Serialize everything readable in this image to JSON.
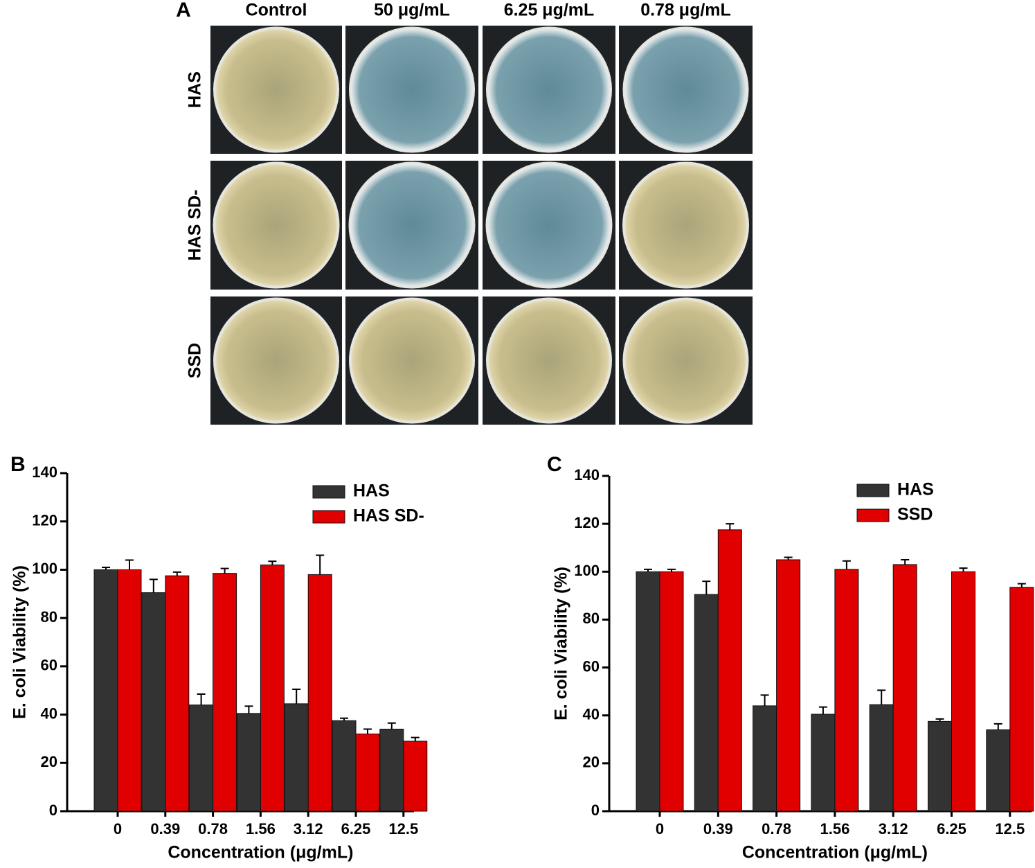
{
  "panel_a": {
    "label": "A",
    "columns": [
      "Control",
      "50 μg/mL",
      "6.25 μg/mL",
      "0.78 μg/mL"
    ],
    "rows": [
      "HAS",
      "HAS SD-",
      "SSD"
    ]
  },
  "chart_data": [
    {
      "type": "bar",
      "panel_label": "B",
      "xlabel": "Concentration (μg/mL)",
      "ylabel": "E. coli  Viability (%)",
      "categories": [
        "0",
        "0.39",
        "0.78",
        "1.56",
        "3.12",
        "6.25",
        "12.5"
      ],
      "series": [
        {
          "name": "HAS",
          "color": "#333333",
          "values": [
            100,
            90.5,
            44,
            40.5,
            44.5,
            37.5,
            34
          ],
          "errors": [
            1,
            5.5,
            4.5,
            3,
            6,
            1,
            2.5
          ]
        },
        {
          "name": "HAS SD-",
          "color": "#e00000",
          "values": [
            100,
            97.5,
            98.5,
            102,
            98,
            32,
            29
          ],
          "errors": [
            4,
            1.5,
            2,
            1.5,
            8,
            2,
            1.5
          ]
        }
      ],
      "ylim": [
        0,
        140
      ],
      "yticks": [
        0,
        20,
        40,
        60,
        80,
        100,
        120,
        140
      ],
      "legend": "upper right"
    },
    {
      "type": "bar",
      "panel_label": "C",
      "xlabel": "Concentration (μg/mL)",
      "ylabel": "E. coli  Viability (%)",
      "categories": [
        "0",
        "0.39",
        "0.78",
        "1.56",
        "3.12",
        "6.25",
        "12.5"
      ],
      "series": [
        {
          "name": "HAS",
          "color": "#333333",
          "values": [
            100,
            90.5,
            44,
            40.5,
            44.5,
            37.5,
            34
          ],
          "errors": [
            1,
            5.5,
            4.5,
            3,
            6,
            1,
            2.5
          ]
        },
        {
          "name": "SSD",
          "color": "#e00000",
          "values": [
            100,
            117.5,
            105,
            101,
            103,
            100,
            93.5
          ],
          "errors": [
            1,
            2.5,
            1,
            3.5,
            2,
            1.5,
            1.5
          ]
        }
      ],
      "ylim": [
        0,
        140
      ],
      "yticks": [
        0,
        20,
        40,
        60,
        80,
        100,
        120,
        140
      ],
      "legend": "upper right"
    }
  ]
}
